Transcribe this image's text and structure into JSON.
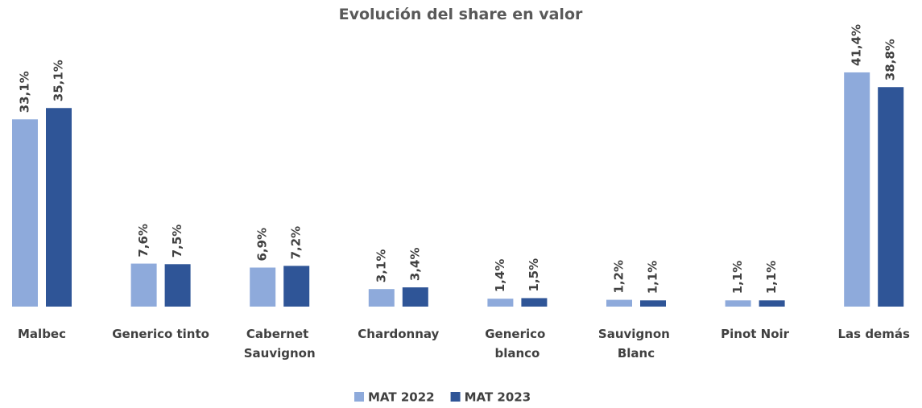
{
  "chart_data": {
    "type": "bar",
    "title": "Evolución del share en valor",
    "categories": [
      "Malbec",
      "Generico tinto",
      "Cabernet Sauvignon",
      "Chardonnay",
      "Generico blanco",
      "Sauvignon Blanc",
      "Pinot Noir",
      "Las demás"
    ],
    "series": [
      {
        "name": "MAT 2022",
        "color": "#8eaadb",
        "values": [
          33.1,
          7.6,
          6.9,
          3.1,
          1.4,
          1.2,
          1.1,
          41.4
        ],
        "value_labels": [
          "33,1%",
          "7,6%",
          "6,9%",
          "3,1%",
          "1,4%",
          "1,2%",
          "1,1%",
          "41,4%"
        ]
      },
      {
        "name": "MAT 2023",
        "color": "#2f5597",
        "values": [
          35.1,
          7.5,
          7.2,
          3.4,
          1.5,
          1.1,
          1.1,
          38.8
        ],
        "value_labels": [
          "35,1%",
          "7,5%",
          "7,2%",
          "3,4%",
          "1,5%",
          "1,1%",
          "1,1%",
          "38,8%"
        ]
      }
    ],
    "legend": "bottom"
  }
}
